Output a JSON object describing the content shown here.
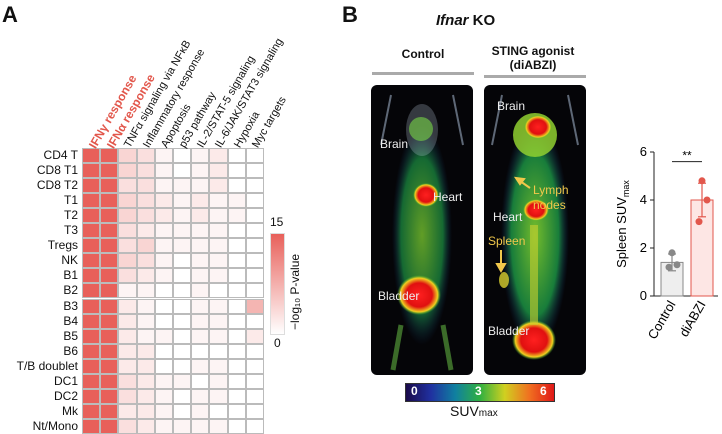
{
  "panel_a": {
    "letter": "A",
    "columns": [
      {
        "label": "IFNγ response",
        "highlight": true
      },
      {
        "label": "IFNα response",
        "highlight": true
      },
      {
        "label": "TNFα signaling via NFκB",
        "highlight": false
      },
      {
        "label": "Inflammatory response",
        "highlight": false
      },
      {
        "label": "Apoptosis",
        "highlight": false
      },
      {
        "label": "p53 pathway",
        "highlight": false
      },
      {
        "label": "IL-2/STAT-5 signaling",
        "highlight": false
      },
      {
        "label": "IL-6/JAK/STAT3 signaling",
        "highlight": false
      },
      {
        "label": "Hypoxia",
        "highlight": false
      },
      {
        "label": "Myc targets",
        "highlight": false
      }
    ],
    "rows": [
      "CD4 T",
      "CD8 T1",
      "CD8 T2",
      "T1",
      "T2",
      "T3",
      "Tregs",
      "NK",
      "B1",
      "B2",
      "B3",
      "B4",
      "B5",
      "B6",
      "T/B doublet",
      "DC1",
      "DC2",
      "Mk",
      "Nt/Mono"
    ],
    "values": [
      [
        15,
        15,
        4,
        3,
        1,
        0,
        1,
        2,
        0,
        0
      ],
      [
        15,
        15,
        4,
        3,
        1,
        0,
        1,
        2,
        0,
        0
      ],
      [
        15,
        15,
        3,
        3,
        1,
        1,
        1,
        2,
        0,
        0
      ],
      [
        15,
        15,
        4,
        3,
        2,
        1,
        2,
        1,
        1,
        0
      ],
      [
        15,
        15,
        4,
        3,
        2,
        1,
        2,
        1,
        1,
        0
      ],
      [
        15,
        15,
        3,
        2,
        1,
        1,
        1,
        1,
        0,
        0
      ],
      [
        15,
        15,
        3,
        4,
        1,
        1,
        1,
        1,
        0,
        0
      ],
      [
        15,
        15,
        4,
        3,
        1,
        0,
        1,
        1,
        0,
        0
      ],
      [
        15,
        15,
        3,
        2,
        1,
        0,
        1,
        1,
        0,
        0
      ],
      [
        15,
        15,
        1,
        1,
        0,
        0,
        1,
        0,
        0,
        0
      ],
      [
        15,
        15,
        2,
        1,
        0,
        0,
        1,
        1,
        0,
        7
      ],
      [
        15,
        15,
        2,
        1,
        0,
        0,
        1,
        1,
        0,
        0
      ],
      [
        15,
        15,
        2,
        1,
        1,
        0,
        1,
        1,
        0,
        2
      ],
      [
        15,
        15,
        2,
        2,
        0,
        0,
        0,
        0,
        0,
        0
      ],
      [
        15,
        15,
        2,
        2,
        0,
        0,
        1,
        1,
        0,
        0
      ],
      [
        15,
        15,
        3,
        2,
        1,
        1,
        0,
        1,
        0,
        0
      ],
      [
        15,
        15,
        3,
        2,
        1,
        0,
        1,
        1,
        0,
        0
      ],
      [
        15,
        15,
        2,
        2,
        1,
        0,
        1,
        0,
        0,
        0
      ],
      [
        15,
        15,
        3,
        2,
        1,
        1,
        1,
        1,
        0,
        0
      ]
    ],
    "colorbar": {
      "max_label": "15",
      "min_label": "0",
      "title": "−log₁₀ P-value",
      "max": 15,
      "min": 0,
      "color_max": "#e8605a",
      "color_min": "#ffffff"
    }
  },
  "panel_b": {
    "letter": "B",
    "title_italic": "Ifnar",
    "title_rest": " KO",
    "control_label": "Control",
    "sting_label_line1": "STING agonist",
    "sting_label_line2": "(diABZI)",
    "control_organs": {
      "brain": "Brain",
      "heart": "Heart",
      "bladder": "Bladder"
    },
    "sting_organs": {
      "brain": "Brain",
      "heart": "Heart",
      "bladder": "Bladder",
      "lymph1": "Lymph",
      "lymph2": "nodes",
      "spleen": "Spleen"
    },
    "suv_scale": {
      "min_label": "0",
      "mid_label": "3",
      "max_label": "6",
      "title": "SUV",
      "title_sub": "max"
    }
  },
  "bar_chart": {
    "chart_data": {
      "type": "bar",
      "categories": [
        "Control",
        "diABZI"
      ],
      "values": [
        1.4,
        4.0
      ],
      "errors": [
        0.35,
        0.7
      ],
      "points": [
        [
          1.8,
          1.3,
          1.2
        ],
        [
          4.8,
          4.0,
          3.1
        ]
      ],
      "ylabel": "Spleen SUV",
      "ylabel_sub": "max",
      "ylim": [
        0,
        6
      ],
      "yticks": [
        "0",
        "2",
        "4",
        "6"
      ],
      "significance": "**",
      "colors": {
        "control_fill": "#eeeeee",
        "control_edge": "#888888",
        "diabzi_fill": "#fde6e4",
        "diabzi_edge": "#e2574c"
      }
    }
  }
}
